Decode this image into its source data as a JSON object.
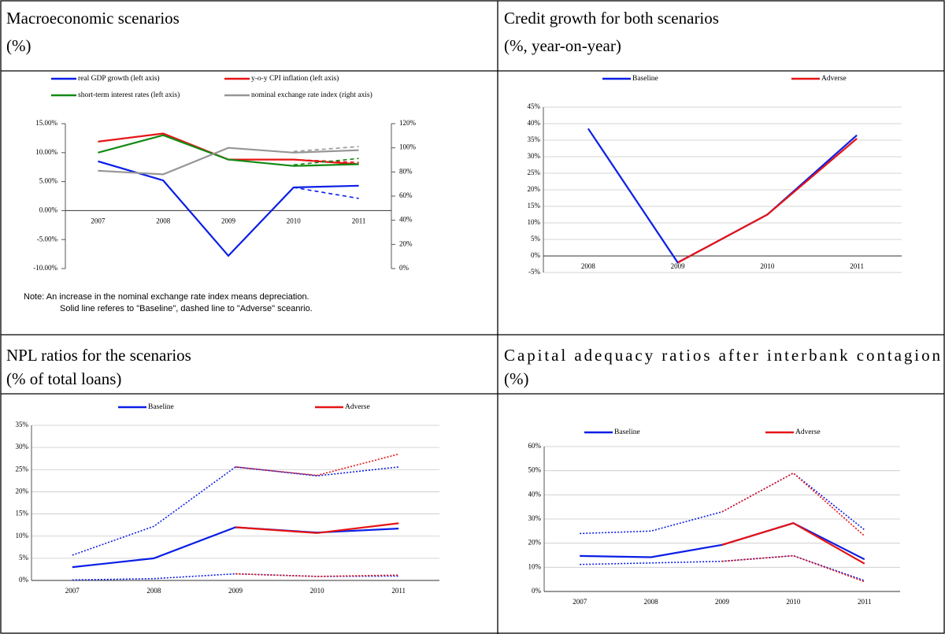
{
  "chart_data": [
    {
      "type": "line",
      "title": "Macroeconomic scenarios",
      "subtitle": "(%)",
      "categories": [
        "2007",
        "2008",
        "2009",
        "2010",
        "2011"
      ],
      "ylim": [
        -10,
        15
      ],
      "yticks": [
        {
          "value": -10,
          "label": "-10.00%"
        },
        {
          "value": -5,
          "label": "-5.00%"
        },
        {
          "value": 0,
          "label": "0.00%"
        },
        {
          "value": 5,
          "label": "5.00%"
        },
        {
          "value": 10,
          "label": "10.00%"
        },
        {
          "value": 15,
          "label": "15.00%"
        }
      ],
      "y2lim": [
        0,
        120
      ],
      "y2ticks": [
        {
          "value": 0,
          "label": "0%"
        },
        {
          "value": 20,
          "label": "20%"
        },
        {
          "value": 40,
          "label": "40%"
        },
        {
          "value": 60,
          "label": "60%"
        },
        {
          "value": 80,
          "label": "80%"
        },
        {
          "value": 100,
          "label": "100%"
        },
        {
          "value": 120,
          "label": "120%"
        }
      ],
      "grid": false,
      "legend": "top",
      "series": [
        {
          "name": "real GDP growth (left axis)",
          "color": "#0a1ee6",
          "values": [
            8.5,
            5.2,
            -7.8,
            4.0,
            4.3
          ]
        },
        {
          "name": "y-o-y CPI inflation (left axis)",
          "color": "#e61414",
          "values": [
            11.9,
            13.3,
            8.8,
            8.8,
            8.0
          ]
        },
        {
          "name": "short-term interest rates (left axis)",
          "color": "#138a13",
          "values": [
            10.0,
            13.0,
            8.8,
            7.7,
            8.0
          ]
        },
        {
          "name": "nominal exchange rate index (right axis)",
          "color": "#969696",
          "axis": "y2",
          "values": [
            81,
            78,
            100,
            96,
            98
          ]
        },
        {
          "color": "#0a1ee6",
          "style": "dashed",
          "values": [
            null,
            null,
            null,
            4.0,
            2.1
          ]
        },
        {
          "color": "#e61414",
          "style": "dashed",
          "values": [
            null,
            null,
            null,
            8.8,
            8.3
          ]
        },
        {
          "color": "#138a13",
          "style": "dashed",
          "values": [
            null,
            null,
            null,
            7.9,
            9.0
          ]
        },
        {
          "color": "#969696",
          "style": "dashed",
          "axis": "y2",
          "values": [
            null,
            null,
            null,
            97,
            101
          ]
        }
      ],
      "note": [
        "Note: An increase in the nominal exchange rate index means depreciation.",
        "Solid line referes to \"Baseline\", dashed line to \"Adverse\" sceanrio."
      ]
    },
    {
      "type": "line",
      "title": "Credit growth for both scenarios",
      "subtitle": "(%, year-on-year)",
      "categories": [
        "2008",
        "2009",
        "2010",
        "2011"
      ],
      "ylim": [
        -5,
        45
      ],
      "yticks": [
        {
          "value": -5,
          "label": "-5%"
        },
        {
          "value": 0,
          "label": "0%"
        },
        {
          "value": 5,
          "label": "5%"
        },
        {
          "value": 10,
          "label": "10%"
        },
        {
          "value": 15,
          "label": "15%"
        },
        {
          "value": 20,
          "label": "20%"
        },
        {
          "value": 25,
          "label": "25%"
        },
        {
          "value": 30,
          "label": "30%"
        },
        {
          "value": 35,
          "label": "35%"
        },
        {
          "value": 40,
          "label": "40%"
        },
        {
          "value": 45,
          "label": "45%"
        }
      ],
      "grid": true,
      "legend": "top",
      "series": [
        {
          "name": "Baseline",
          "color": "#0a1ee6",
          "values": [
            38.5,
            -2,
            12.5,
            36.5
          ]
        },
        {
          "name": "Adverse",
          "color": "#e61414",
          "values": [
            null,
            -2,
            12.5,
            35.5
          ]
        }
      ]
    },
    {
      "type": "line",
      "title": "NPL ratios for the  scenarios",
      "subtitle": "(% of total loans)",
      "categories": [
        "2007",
        "2008",
        "2009",
        "2010",
        "2011"
      ],
      "ylim": [
        0,
        35
      ],
      "yticks": [
        {
          "value": 0,
          "label": "0%"
        },
        {
          "value": 5,
          "label": "5%"
        },
        {
          "value": 10,
          "label": "10%"
        },
        {
          "value": 15,
          "label": "15%"
        },
        {
          "value": 20,
          "label": "20%"
        },
        {
          "value": 25,
          "label": "25%"
        },
        {
          "value": 30,
          "label": "30%"
        },
        {
          "value": 35,
          "label": "35%"
        }
      ],
      "grid": true,
      "legend": "top",
      "series": [
        {
          "name": "Baseline",
          "color": "#0a1ee6",
          "values": [
            3.0,
            5.0,
            12.0,
            10.8,
            11.7
          ]
        },
        {
          "name": "Adverse",
          "color": "#e61414",
          "values": [
            null,
            null,
            12.0,
            10.7,
            12.9
          ]
        },
        {
          "color": "#0a1ee6",
          "style": "dotted",
          "values": [
            5.7,
            12.2,
            25.6,
            23.6,
            25.6
          ]
        },
        {
          "color": "#e61414",
          "style": "dotted",
          "values": [
            null,
            null,
            25.6,
            23.7,
            28.5
          ]
        },
        {
          "color": "#0a1ee6",
          "style": "dotted",
          "values": [
            0.1,
            0.4,
            1.5,
            0.9,
            1.0
          ]
        },
        {
          "color": "#e61414",
          "style": "dotted",
          "values": [
            null,
            null,
            1.5,
            0.9,
            1.2
          ]
        }
      ]
    },
    {
      "type": "line",
      "title": "Capital adequacy ratios after interbank contagion",
      "subtitle": "(%)",
      "categories": [
        "2007",
        "2008",
        "2009",
        "2010",
        "2011"
      ],
      "ylim": [
        0,
        60
      ],
      "yticks": [
        {
          "value": 0,
          "label": "0%"
        },
        {
          "value": 10,
          "label": "10%"
        },
        {
          "value": 20,
          "label": "20%"
        },
        {
          "value": 30,
          "label": "30%"
        },
        {
          "value": 40,
          "label": "40%"
        },
        {
          "value": 50,
          "label": "50%"
        },
        {
          "value": 60,
          "label": "60%"
        }
      ],
      "grid": true,
      "legend": "top",
      "series": [
        {
          "name": "Baseline",
          "color": "#0a1ee6",
          "values": [
            14.7,
            14.2,
            19.3,
            28.3,
            13.3
          ]
        },
        {
          "name": "Adverse",
          "color": "#e61414",
          "values": [
            null,
            null,
            19.3,
            28.3,
            11.5
          ]
        },
        {
          "color": "#0a1ee6",
          "style": "dotted",
          "values": [
            24.0,
            25.0,
            33.0,
            49.0,
            25.5
          ]
        },
        {
          "color": "#e61414",
          "style": "dotted",
          "values": [
            null,
            null,
            33.0,
            49.0,
            23.0
          ]
        },
        {
          "color": "#0a1ee6",
          "style": "dotted",
          "values": [
            11.2,
            11.8,
            12.5,
            14.8,
            4.5
          ]
        },
        {
          "color": "#e61414",
          "style": "dotted",
          "values": [
            null,
            null,
            12.5,
            14.8,
            4.0
          ]
        }
      ]
    }
  ]
}
